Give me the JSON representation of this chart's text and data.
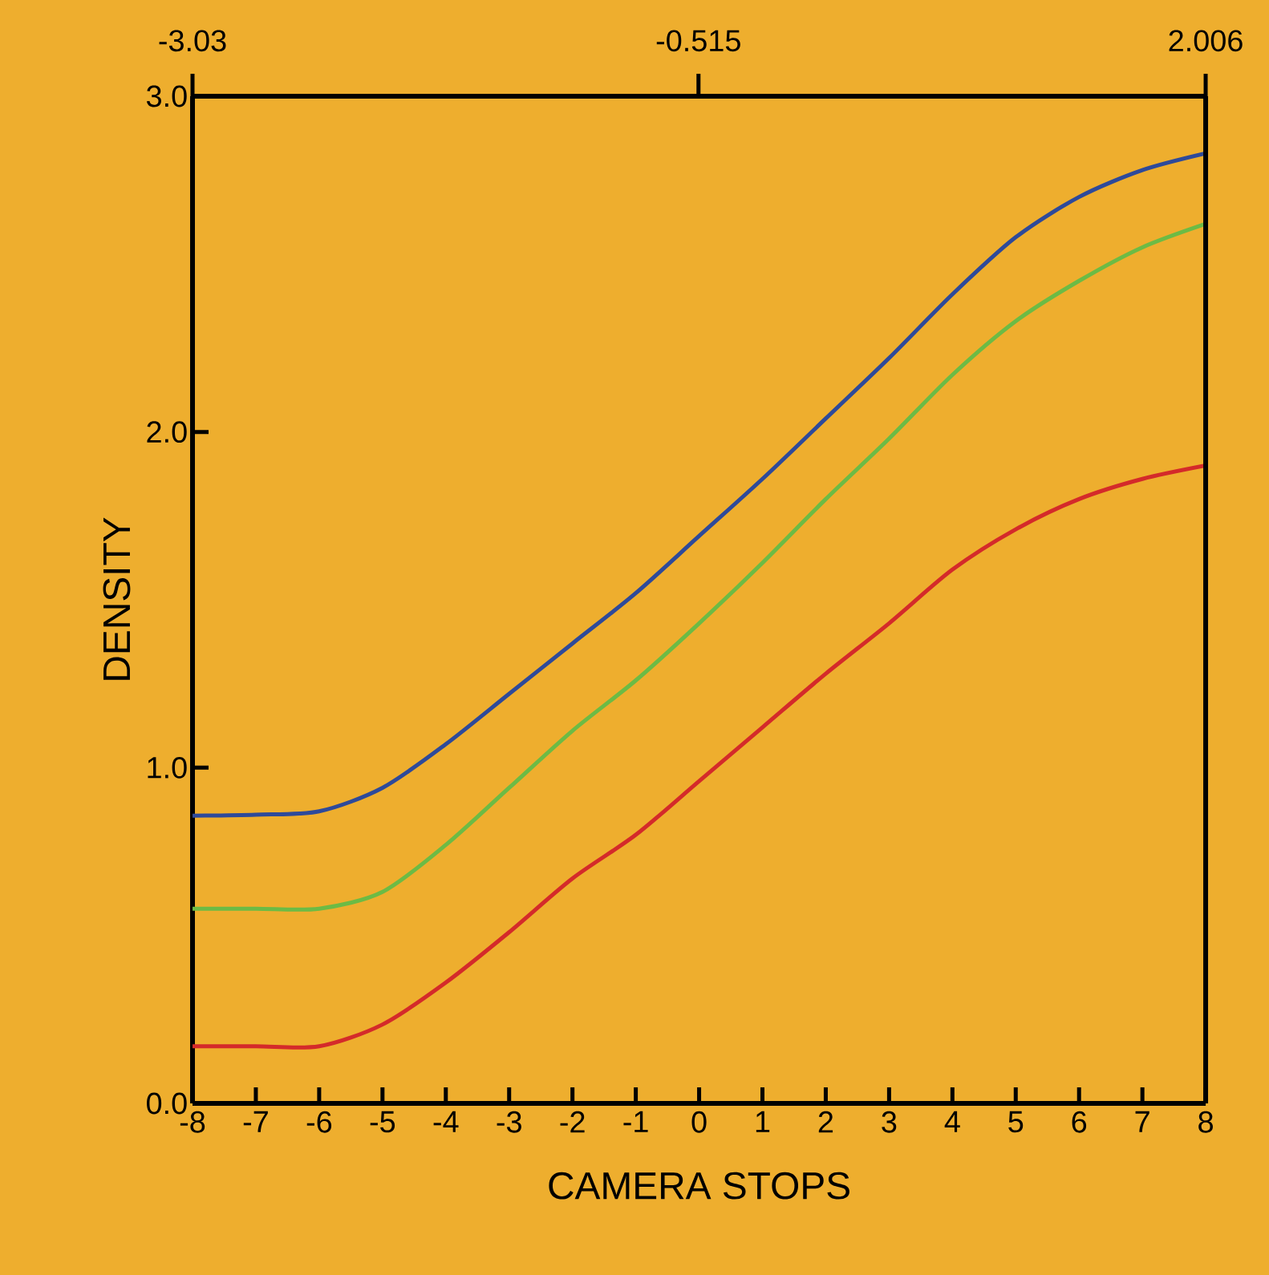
{
  "chart_data": {
    "type": "line",
    "xlabel": "CAMERA STOPS",
    "ylabel": "DENSITY",
    "x": [
      -8,
      -7,
      -6,
      -5,
      -4,
      -3,
      -2,
      -1,
      0,
      1,
      2,
      3,
      4,
      5,
      6,
      7,
      8
    ],
    "series": [
      {
        "color": "#2e4a9a",
        "values": [
          0.857,
          0.86,
          0.87,
          0.94,
          1.07,
          1.22,
          1.37,
          1.52,
          1.69,
          1.86,
          2.04,
          2.22,
          2.41,
          2.58,
          2.7,
          2.78,
          2.83
        ]
      },
      {
        "color": "#6cbb45",
        "values": [
          0.58,
          0.58,
          0.58,
          0.63,
          0.77,
          0.94,
          1.11,
          1.26,
          1.43,
          1.61,
          1.8,
          1.98,
          2.17,
          2.33,
          2.45,
          2.55,
          2.62
        ]
      },
      {
        "color": "#d42a2a",
        "values": [
          0.17,
          0.17,
          0.17,
          0.235,
          0.36,
          0.51,
          0.67,
          0.8,
          0.96,
          1.12,
          1.28,
          1.43,
          1.59,
          1.71,
          1.8,
          1.86,
          1.9
        ]
      }
    ],
    "xlim": [
      -8,
      8
    ],
    "xticks": [
      -8,
      -7,
      -6,
      -5,
      -4,
      -3,
      -2,
      -1,
      0,
      1,
      2,
      3,
      4,
      5,
      6,
      7,
      8
    ],
    "ylim": [
      0,
      3
    ],
    "yticks": [
      {
        "value": 0,
        "label": "0.0"
      },
      {
        "value": 1,
        "label": "1.0"
      },
      {
        "value": 2,
        "label": "2.0"
      },
      {
        "value": 3,
        "label": "3.0"
      }
    ],
    "x2lim": [
      -3.03,
      2.006
    ],
    "x2ticks": [
      -3.03,
      -0.515,
      2.006
    ],
    "grid": false
  }
}
